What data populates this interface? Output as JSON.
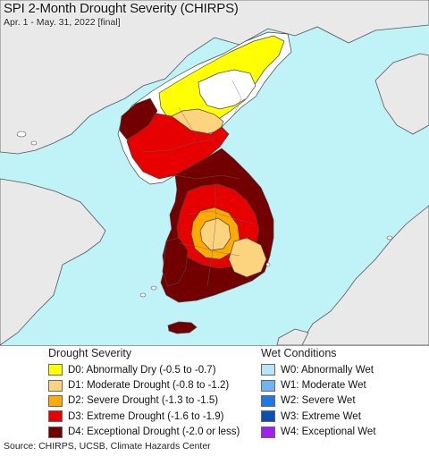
{
  "header": {
    "title": "SPI 2-Month Drought Severity (CHIRPS)",
    "subtitle": "Apr. 1 - May. 31, 2022 [final]"
  },
  "colors": {
    "sea": "#bff3f7",
    "land_neutral": "#ffffff",
    "neighbor_land": "#e9e9e9",
    "D0": "#ffff00",
    "D1": "#fcd37f",
    "D2": "#ffaa00",
    "D3": "#e60000",
    "D4": "#730000",
    "W0": "#b8e6f7",
    "W1": "#6fb3f2",
    "W2": "#1f78e6",
    "W3": "#0a50b4",
    "W4": "#a020f0"
  },
  "drought_legend": {
    "title": "Drought Severity",
    "items": [
      {
        "code": "D0",
        "label": "D0: Abnormally Dry (-0.5 to -0.7)",
        "color": "#ffff00"
      },
      {
        "code": "D1",
        "label": "D1: Moderate Drought (-0.8 to -1.2)",
        "color": "#fcd37f"
      },
      {
        "code": "D2",
        "label": "D2: Severe Drought (-1.3 to -1.5)",
        "color": "#ffaa00"
      },
      {
        "code": "D3",
        "label": "D3: Extreme Drought (-1.6 to -1.9)",
        "color": "#e60000"
      },
      {
        "code": "D4",
        "label": "D4: Exceptional Drought (-2.0 or less)",
        "color": "#730000"
      }
    ]
  },
  "wet_legend": {
    "title": "Wet Conditions",
    "items": [
      {
        "code": "W0",
        "label": "W0: Abnormally Wet",
        "color": "#b8e6f7"
      },
      {
        "code": "W1",
        "label": "W1: Moderate Wet",
        "color": "#6fb3f2"
      },
      {
        "code": "W2",
        "label": "W2: Severe Wet",
        "color": "#1f78e6"
      },
      {
        "code": "W3",
        "label": "W3: Extreme Wet",
        "color": "#0a50b4"
      },
      {
        "code": "W4",
        "label": "W4: Exceptional Wet",
        "color": "#a020f0"
      }
    ]
  },
  "footer": {
    "source": "Source: CHIRPS, UCSB, Climate Hazards Center"
  }
}
